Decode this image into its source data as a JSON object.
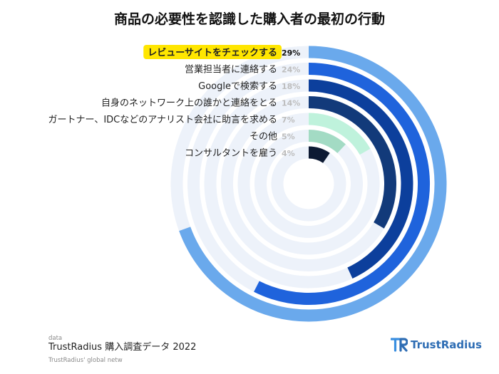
{
  "title": "商品の必要性を認識した購入者の最初の行動",
  "footer": {
    "source": "TrustRadius 購入調査データ 2022",
    "ghost_line_1": "data",
    "ghost_line_2": "TrustRadius' global netw"
  },
  "logo": {
    "text": "TrustRadius"
  },
  "colors": {
    "highlight": "#ffe600",
    "ring_track": "#edf2fa"
  },
  "chart_data": {
    "type": "radial-bar",
    "title": "商品の必要性を認識した購入者の最初の行動",
    "max": 29,
    "series": [
      {
        "label": "レビューサイトをチェックする",
        "value": 29,
        "value_label": "29%",
        "color": "#6aa9ec",
        "highlight": true
      },
      {
        "label": "営業担当者に連絡する",
        "value": 24,
        "value_label": "24%",
        "color": "#1f63dc"
      },
      {
        "label": "Googleで検索する",
        "value": 18,
        "value_label": "18%",
        "color": "#0c3f9c"
      },
      {
        "label": "自身のネットワーク上の誰かと連絡をとる",
        "value": 14,
        "value_label": "14%",
        "color": "#123a7a"
      },
      {
        "label": "ガートナー、IDCなどのアナリスト会社に助言を求める",
        "value": 7,
        "value_label": "7%",
        "color": "#bff2dc"
      },
      {
        "label": "その他",
        "value": 5,
        "value_label": "5%",
        "color": "#a3dbc4"
      },
      {
        "label": "コンサルタントを雇う",
        "value": 4,
        "value_label": "4%",
        "color": "#0d1a33"
      }
    ]
  }
}
